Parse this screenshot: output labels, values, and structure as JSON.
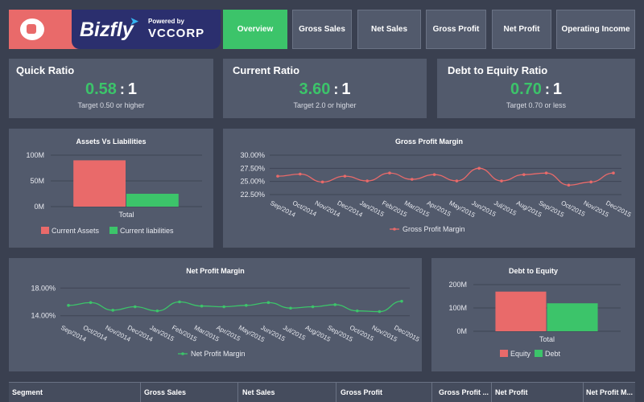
{
  "brand": {
    "name": "Bizfly",
    "powered_by": "Powered by",
    "partner": "VCCORP"
  },
  "tabs": [
    {
      "label": "Overview",
      "active": true
    },
    {
      "label": "Gross Sales",
      "active": false
    },
    {
      "label": "Net Sales",
      "active": false
    },
    {
      "label": "Gross Profit",
      "active": false
    },
    {
      "label": "Net Profit",
      "active": false
    },
    {
      "label": "Operating Income",
      "active": false
    }
  ],
  "ratios": [
    {
      "title": "Quick Ratio",
      "value": "0.58",
      "separator": ":",
      "denominator": "1",
      "target": "Target 0.50 or higher"
    },
    {
      "title": "Current Ratio",
      "value": "3.60",
      "separator": ":",
      "denominator": "1",
      "target": "Target 2.0 or higher"
    },
    {
      "title": "Debt to Equity Ratio",
      "value": "0.70",
      "separator": ":",
      "denominator": "1",
      "target": "Target 0.70 or less"
    }
  ],
  "colors": {
    "accent_green": "#3cc46a",
    "accent_red": "#e96a6a",
    "panel": "#525a6c",
    "background": "#3a4050"
  },
  "chart_data": [
    {
      "type": "bar",
      "title": "Assets Vs Liabilities",
      "categories": [
        "Total"
      ],
      "series": [
        {
          "name": "Current Assets",
          "values": [
            90
          ],
          "color": "#e96a6a"
        },
        {
          "name": "Current liabilities",
          "values": [
            25
          ],
          "color": "#3cc46a"
        }
      ],
      "unit": "M",
      "yticks": [
        "0M",
        "50M",
        "100M"
      ],
      "ylim": [
        0,
        100
      ],
      "legend": "bottom",
      "grid": true
    },
    {
      "type": "line",
      "title": "Gross Profit Margin",
      "categories": [
        "Sep/2014",
        "Oct/2014",
        "Nov/2014",
        "Dec/2014",
        "Jan/2015",
        "Feb/2015",
        "Mar/2015",
        "Apr/2015",
        "May/2015",
        "Jun/2015",
        "Jul/2015",
        "Aug/2015",
        "Sep/2015",
        "Oct/2015",
        "Nov/2015",
        "Dec/2015"
      ],
      "series": [
        {
          "name": "Gross Profit Margin",
          "values": [
            26.0,
            26.4,
            24.9,
            26.0,
            25.1,
            26.6,
            25.4,
            26.3,
            25.1,
            27.5,
            25.1,
            26.3,
            26.6,
            24.3,
            24.9,
            26.6
          ],
          "color": "#e96a6a"
        }
      ],
      "yticks": [
        "22.50%",
        "25.00%",
        "27.50%",
        "30.00%"
      ],
      "ylim": [
        22.5,
        30.0
      ],
      "legend": "bottom",
      "grid": true
    },
    {
      "type": "line",
      "title": "Net Profit Margin",
      "categories": [
        "Sep/2014",
        "Oct/2014",
        "Nov/2014",
        "Dec/2014",
        "Jan/2015",
        "Feb/2015",
        "Mar/2015",
        "Apr/2015",
        "May/2015",
        "Jun/2015",
        "Jul/2015",
        "Aug/2015",
        "Sep/2015",
        "Oct/2015",
        "Nov/2015",
        "Dec/2015"
      ],
      "series": [
        {
          "name": "Net Profit Margin",
          "values": [
            15.5,
            15.9,
            14.8,
            15.3,
            14.7,
            16.0,
            15.4,
            15.3,
            15.5,
            15.9,
            15.1,
            15.3,
            15.6,
            14.7,
            14.6,
            16.1
          ],
          "color": "#3cc46a"
        }
      ],
      "yticks": [
        "14.00%",
        "18.00%"
      ],
      "ylim": [
        13.5,
        18.5
      ],
      "legend": "bottom",
      "grid": true
    },
    {
      "type": "bar",
      "title": "Debt to Equity",
      "categories": [
        "Total"
      ],
      "series": [
        {
          "name": "Equity",
          "values": [
            170
          ],
          "color": "#e96a6a"
        },
        {
          "name": "Debt",
          "values": [
            120
          ],
          "color": "#3cc46a"
        }
      ],
      "unit": "M",
      "yticks": [
        "0M",
        "100M",
        "200M"
      ],
      "ylim": [
        0,
        200
      ],
      "legend": "bottom",
      "grid": true
    }
  ],
  "table": {
    "columns": [
      "Segment",
      "Gross Sales",
      "Net Sales",
      "Gross Profit",
      "Gross Profit ...",
      "Net Profit",
      "Net Profit M..."
    ]
  }
}
